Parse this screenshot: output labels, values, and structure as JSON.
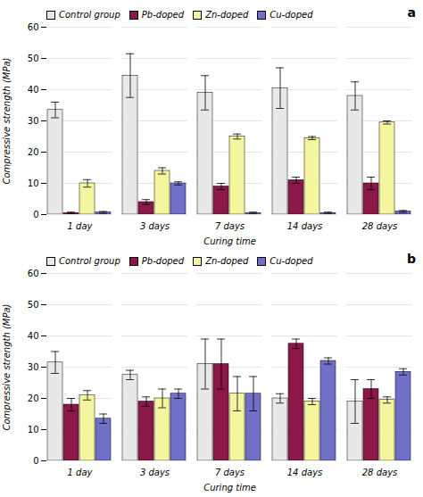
{
  "chart_data": [
    {
      "type": "bar",
      "title": "a",
      "categories": [
        "1 day",
        "3 days",
        "7 days",
        "14 days",
        "28 days"
      ],
      "series": [
        {
          "name": "Control group",
          "color": "#e8e8e8",
          "values": [
            33.5,
            44.5,
            39.0,
            40.5,
            38.0
          ],
          "errors": [
            2.5,
            7.0,
            5.5,
            6.5,
            4.5
          ]
        },
        {
          "name": "Pb-doped",
          "color": "#8b1848",
          "values": [
            0.5,
            4.0,
            9.0,
            11.0,
            10.0
          ],
          "errors": [
            0.3,
            0.8,
            1.0,
            1.0,
            2.0
          ]
        },
        {
          "name": "Zn-doped",
          "color": "#f5f5a0",
          "values": [
            10.0,
            14.0,
            25.0,
            24.5,
            29.5
          ],
          "errors": [
            1.2,
            1.0,
            0.8,
            0.5,
            0.5
          ]
        },
        {
          "name": "Cu-doped",
          "color": "#7070c8",
          "values": [
            0.7,
            10.0,
            0.5,
            0.5,
            1.0
          ],
          "errors": [
            0.3,
            0.5,
            0.3,
            0.3,
            0.3
          ]
        }
      ],
      "xlabel": "Curing time",
      "ylabel": "Compressive strength (MPa)",
      "ylim": [
        0,
        60
      ],
      "yticks": [
        0,
        10,
        20,
        30,
        40,
        50,
        60
      ],
      "grid": true,
      "legend": "upper left"
    },
    {
      "type": "bar",
      "title": "b",
      "categories": [
        "1 day",
        "3 days",
        "7 days",
        "14 days",
        "28 days"
      ],
      "series": [
        {
          "name": "Control group",
          "color": "#e8e8e8",
          "values": [
            31.5,
            27.5,
            31.0,
            20.0,
            19.0
          ],
          "errors": [
            3.5,
            1.5,
            8.0,
            1.5,
            7.0
          ]
        },
        {
          "name": "Pb-doped",
          "color": "#8b1848",
          "values": [
            18.0,
            19.0,
            31.0,
            37.5,
            23.0
          ],
          "errors": [
            2.0,
            1.5,
            8.0,
            1.5,
            3.0
          ]
        },
        {
          "name": "Zn-doped",
          "color": "#f5f5a0",
          "values": [
            21.0,
            20.0,
            21.5,
            19.0,
            19.5
          ],
          "errors": [
            1.5,
            3.0,
            5.5,
            1.0,
            1.0
          ]
        },
        {
          "name": "Cu-doped",
          "color": "#7070c8",
          "values": [
            13.5,
            21.5,
            21.5,
            32.0,
            28.5
          ],
          "errors": [
            1.5,
            1.5,
            5.5,
            1.0,
            1.0
          ]
        }
      ],
      "xlabel": "Curing time",
      "ylabel": "Compressive strength (MPa)",
      "ylim": [
        0,
        60
      ],
      "yticks": [
        0,
        10,
        20,
        30,
        40,
        50,
        60
      ],
      "grid": true,
      "legend": "upper left"
    }
  ]
}
